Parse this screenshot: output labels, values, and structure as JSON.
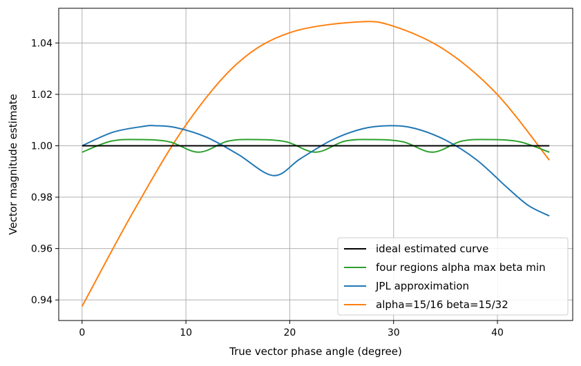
{
  "chart_data": {
    "type": "line",
    "title": "",
    "xlabel": "True vector phase angle (degree)",
    "ylabel": "Vector magnitude estimate",
    "xlim": [
      -2.25,
      47.25
    ],
    "ylim": [
      0.932,
      1.0535
    ],
    "xticks": [
      0,
      10,
      20,
      30,
      40
    ],
    "yticks": [
      0.94,
      0.96,
      0.98,
      1.0,
      1.02,
      1.04
    ],
    "ytick_labels": [
      "0.94",
      "0.96",
      "0.98",
      "1.00",
      "1.02",
      "1.04"
    ],
    "grid": true,
    "legend_position": "lower-right",
    "series": [
      {
        "name": "ideal estimated curve",
        "color": "#000000",
        "x": [
          0,
          45
        ],
        "y": [
          1.0,
          1.0
        ]
      },
      {
        "name": "four regions alpha max beta min",
        "color": "#2ca02c",
        "x": [
          0,
          2.8125,
          5.625,
          8.4375,
          11.25,
          14.0625,
          16.875,
          19.6875,
          22.5,
          25.3125,
          28.125,
          30.9375,
          33.75,
          36.5625,
          39.375,
          42.1875,
          45
        ],
        "y": [
          0.9975,
          1.0018,
          1.0024,
          1.0015,
          0.9975,
          1.0018,
          1.0024,
          1.0015,
          0.9975,
          1.0018,
          1.0024,
          1.0015,
          0.9975,
          1.0018,
          1.0024,
          1.0015,
          0.9975
        ]
      },
      {
        "name": "JPL approximation",
        "color": "#1f77b4",
        "x": [
          0,
          3,
          6,
          7,
          9,
          12,
          15,
          18.43,
          21,
          24,
          27,
          29.6,
          32,
          35,
          38,
          41,
          43,
          45
        ],
        "y": [
          1.0,
          1.0053,
          1.0076,
          1.0078,
          1.0071,
          1.0033,
          0.9967,
          0.9884,
          0.9949,
          1.0021,
          1.0066,
          1.0078,
          1.0068,
          1.0022,
          0.9945,
          0.9835,
          0.9767,
          0.9727
        ]
      },
      {
        "name": "alpha=15/16 beta=15/32",
        "color": "#ff7f0e",
        "x": [
          0,
          5,
          10,
          15,
          20,
          26.57,
          30,
          35,
          40,
          45
        ],
        "y": [
          0.9375,
          0.9748,
          1.0081,
          1.0322,
          1.044,
          1.0482,
          1.0465,
          1.0371,
          1.0199,
          0.9944
        ]
      }
    ]
  }
}
